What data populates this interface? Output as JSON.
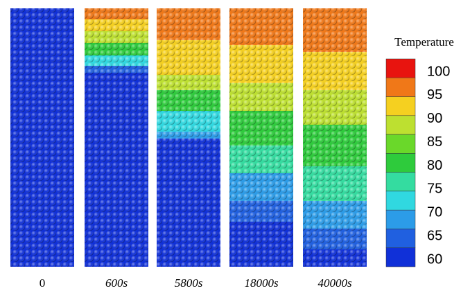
{
  "legend": {
    "title": "Temperature",
    "labels": [
      100,
      95,
      90,
      85,
      80,
      75,
      70,
      65,
      60
    ],
    "colors": [
      "#e8140f",
      "#f07818",
      "#f5d020",
      "#bde030",
      "#6ad82a",
      "#2ecb3c",
      "#34dca0",
      "#30d8e0",
      "#2c9ce8",
      "#2060e0",
      "#1030d8"
    ]
  },
  "columns": [
    {
      "label": "0"
    },
    {
      "label": "600s"
    },
    {
      "label": "5800s"
    },
    {
      "label": "18000s"
    },
    {
      "label": "40000s"
    }
  ]
}
